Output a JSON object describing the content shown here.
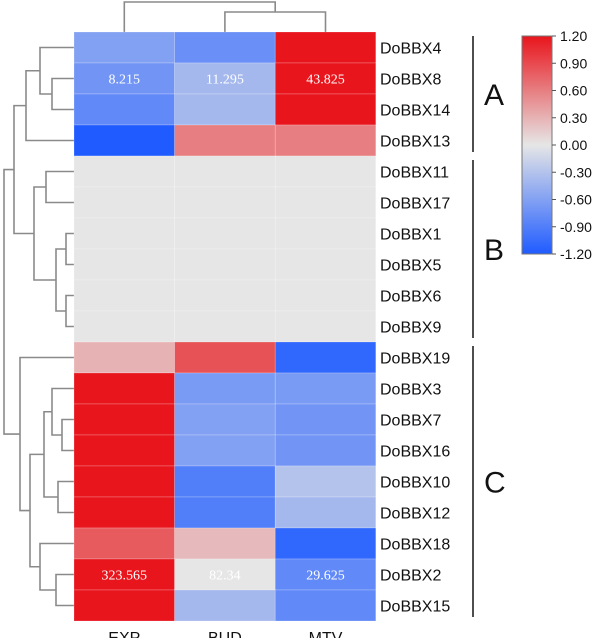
{
  "chart_data": {
    "type": "heatmap",
    "title": "",
    "columns": [
      "EXP",
      "BUD",
      "MTV"
    ],
    "rows": [
      {
        "gene": "DoBBX4",
        "values": [
          -0.6,
          -0.75,
          1.2
        ]
      },
      {
        "gene": "DoBBX8",
        "values": [
          -0.7,
          -0.4,
          1.2
        ],
        "labels": [
          "8.215",
          "11.295",
          "43.825"
        ]
      },
      {
        "gene": "DoBBX14",
        "values": [
          -0.8,
          -0.4,
          1.2
        ]
      },
      {
        "gene": "DoBBX13",
        "values": [
          -1.2,
          0.6,
          0.6
        ]
      },
      {
        "gene": "DoBBX11",
        "values": [
          0.0,
          0.0,
          0.0
        ]
      },
      {
        "gene": "DoBBX17",
        "values": [
          0.0,
          0.0,
          0.0
        ]
      },
      {
        "gene": "DoBBX1",
        "values": [
          0.0,
          0.0,
          0.0
        ]
      },
      {
        "gene": "DoBBX5",
        "values": [
          0.0,
          0.0,
          0.0
        ]
      },
      {
        "gene": "DoBBX6",
        "values": [
          0.0,
          0.0,
          0.0
        ]
      },
      {
        "gene": "DoBBX9",
        "values": [
          0.0,
          0.0,
          0.0
        ]
      },
      {
        "gene": "DoBBX19",
        "values": [
          0.3,
          0.85,
          -1.1
        ]
      },
      {
        "gene": "DoBBX3",
        "values": [
          1.2,
          -0.65,
          -0.65
        ]
      },
      {
        "gene": "DoBBX7",
        "values": [
          1.2,
          -0.6,
          -0.7
        ]
      },
      {
        "gene": "DoBBX16",
        "values": [
          1.2,
          -0.6,
          -0.7
        ]
      },
      {
        "gene": "DoBBX10",
        "values": [
          1.2,
          -0.9,
          -0.3
        ]
      },
      {
        "gene": "DoBBX12",
        "values": [
          1.2,
          -0.9,
          -0.4
        ]
      },
      {
        "gene": "DoBBX18",
        "values": [
          0.8,
          0.25,
          -1.1
        ]
      },
      {
        "gene": "DoBBX2",
        "values": [
          1.2,
          0.0,
          -0.8
        ],
        "labels": [
          "323.565",
          "82.34",
          "29.625"
        ]
      },
      {
        "gene": "DoBBX15",
        "values": [
          1.2,
          -0.4,
          -0.8
        ]
      }
    ],
    "clusters": [
      {
        "label": "A",
        "from": "DoBBX4",
        "to": "DoBBX13"
      },
      {
        "label": "B",
        "from": "DoBBX11",
        "to": "DoBBX9"
      },
      {
        "label": "C",
        "from": "DoBBX19",
        "to": "DoBBX15"
      }
    ],
    "colorbar": {
      "min": -1.2,
      "max": 1.2,
      "tick_labels": [
        "1.20",
        "0.90",
        "0.60",
        "0.30",
        "0.00",
        "-0.30",
        "-0.60",
        "-0.90",
        "-1.20"
      ]
    },
    "colors": {
      "low": "#1f5bff",
      "mid": "#e6e6e6",
      "high": "#e8151c"
    }
  }
}
